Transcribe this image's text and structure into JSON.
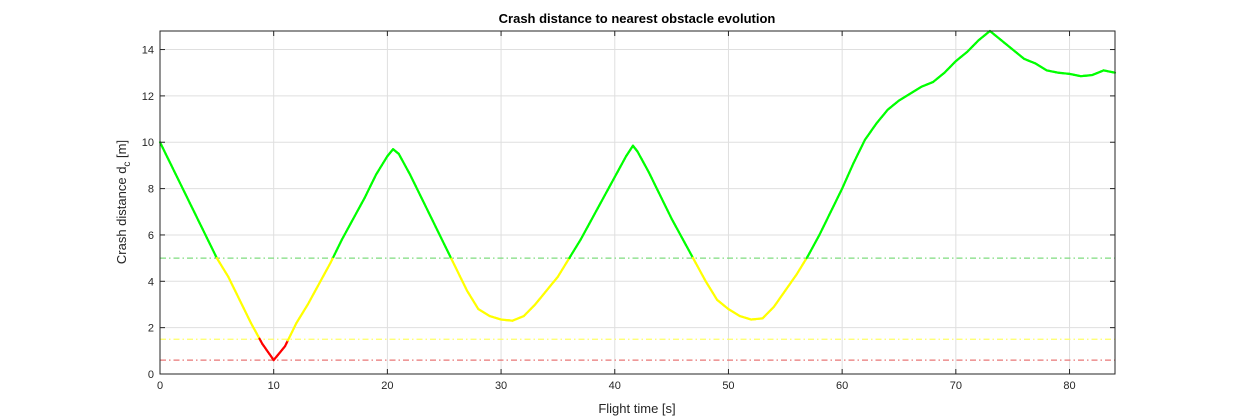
{
  "chart_data": {
    "type": "line",
    "title": "Crash distance to nearest obstacle evolution",
    "xlabel": "Flight time [s]",
    "ylabel": "Crash distance d",
    "ylabel_sub": "c",
    "ylabel_unit": " [m]",
    "xlim": [
      0,
      84
    ],
    "ylim": [
      0,
      14.8
    ],
    "xticks": [
      0,
      10,
      20,
      30,
      40,
      50,
      60,
      70,
      80
    ],
    "yticks": [
      0,
      2,
      4,
      6,
      8,
      10,
      12,
      14
    ],
    "grid": true,
    "legend": "none",
    "colors": {
      "safe": "#00ff00",
      "warning": "#ffff00",
      "danger": "#ff0000",
      "grid": "#dfdfdf",
      "axis": "#262626"
    },
    "thresholds": [
      {
        "level": "safe",
        "y": 5.0,
        "color": "#7fdc7f"
      },
      {
        "level": "warning",
        "y": 1.5,
        "color": "#ffff66"
      },
      {
        "level": "danger",
        "y": 0.6,
        "color": "#e87777"
      }
    ],
    "series": [
      {
        "x": [
          0,
          1,
          2,
          3,
          4,
          5,
          6,
          7,
          8,
          9,
          10,
          11,
          12,
          13,
          14,
          15,
          16,
          17,
          18,
          19,
          20,
          20.5,
          21,
          22,
          23,
          24,
          25,
          26,
          27,
          28,
          29,
          30,
          31,
          32,
          33,
          34,
          35,
          36,
          37,
          38,
          39,
          40,
          41,
          41.6,
          42,
          43,
          44,
          45,
          46,
          47,
          48,
          49,
          50,
          51,
          52,
          53,
          54,
          55,
          56,
          57,
          58,
          59,
          60,
          61,
          62,
          63,
          64,
          65,
          66,
          67,
          68,
          69,
          70,
          71,
          72,
          73,
          74,
          75,
          76,
          77,
          78,
          79,
          80,
          81,
          82,
          83,
          84
        ],
        "y": [
          10.0,
          9.0,
          8.0,
          7.0,
          6.0,
          5.0,
          4.2,
          3.2,
          2.2,
          1.3,
          0.6,
          1.2,
          2.2,
          3.0,
          3.9,
          4.8,
          5.8,
          6.7,
          7.6,
          8.6,
          9.4,
          9.7,
          9.5,
          8.6,
          7.6,
          6.6,
          5.6,
          4.6,
          3.6,
          2.8,
          2.5,
          2.35,
          2.3,
          2.5,
          3.0,
          3.6,
          4.2,
          5.0,
          5.8,
          6.7,
          7.6,
          8.5,
          9.4,
          9.85,
          9.6,
          8.7,
          7.7,
          6.7,
          5.8,
          4.9,
          4.0,
          3.2,
          2.8,
          2.5,
          2.35,
          2.4,
          2.9,
          3.6,
          4.3,
          5.1,
          6.0,
          7.0,
          8.0,
          9.1,
          10.1,
          10.8,
          11.4,
          11.8,
          12.1,
          12.4,
          12.6,
          13.0,
          13.5,
          13.9,
          14.4,
          14.8,
          14.4,
          14.0,
          13.6,
          13.4,
          13.1,
          13.0,
          12.95,
          12.85,
          12.9,
          13.1,
          13.0
        ]
      }
    ]
  }
}
